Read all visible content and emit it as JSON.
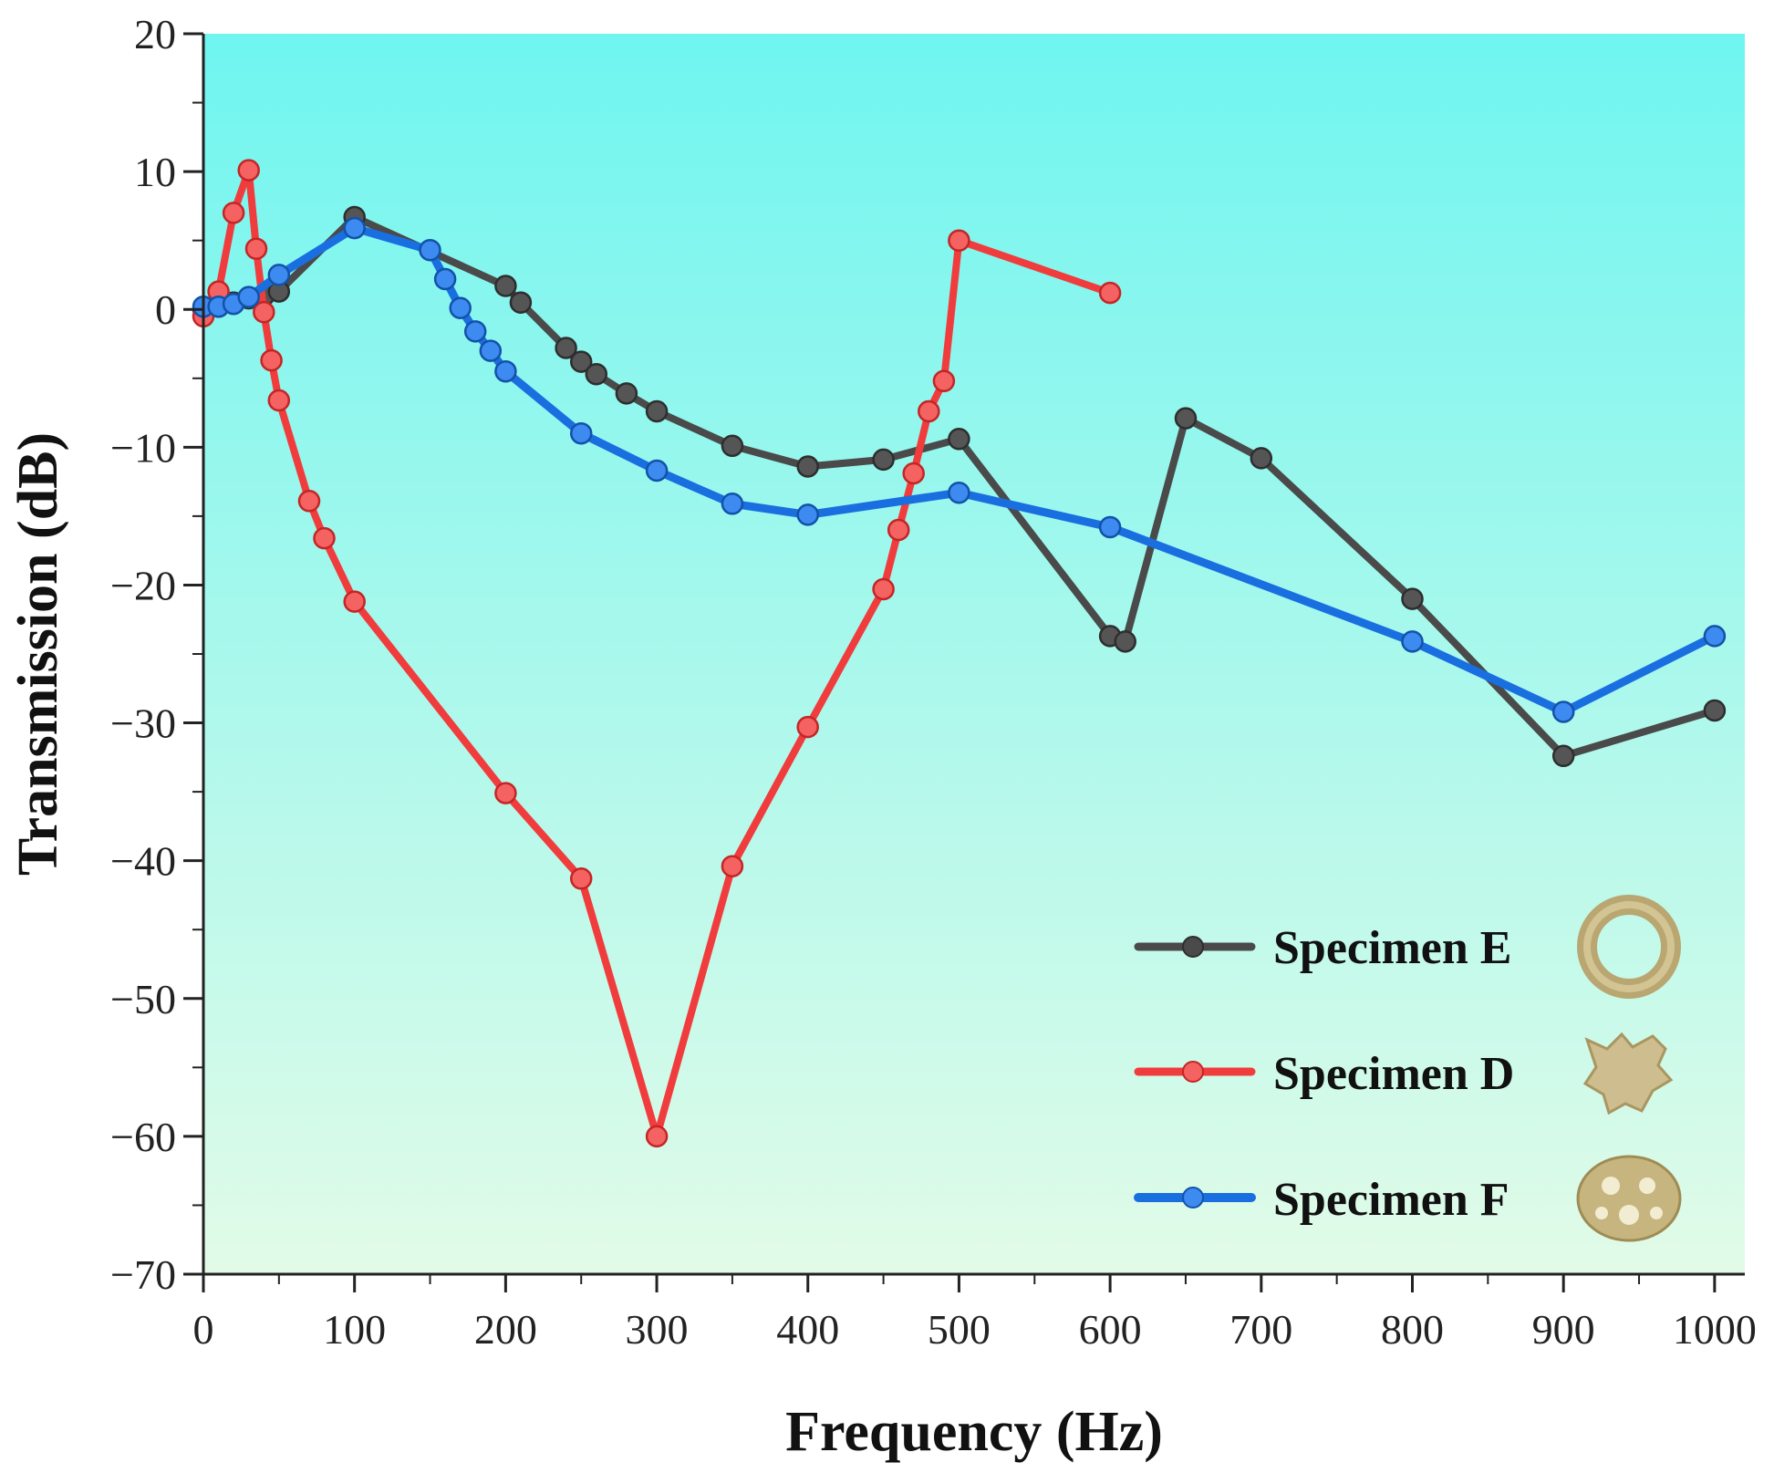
{
  "chart_data": {
    "type": "line",
    "title": "",
    "xlabel": "Frequency (Hz)",
    "ylabel": "Transmission (dB)",
    "xlim": [
      0,
      1020
    ],
    "ylim": [
      -70,
      20
    ],
    "xticks": [
      0,
      100,
      200,
      300,
      400,
      500,
      600,
      700,
      800,
      900,
      1000
    ],
    "yticks": [
      20,
      10,
      0,
      -10,
      -20,
      -30,
      -40,
      -50,
      -60,
      -70
    ],
    "ytick_labels": [
      "20",
      "10",
      "0",
      "−10",
      "−20",
      "−30",
      "−40",
      "−50",
      "−60",
      "−70"
    ],
    "grid": false,
    "legend_position": "bottom-right",
    "background": {
      "top": "#6ff5f0",
      "bottom": "#e2fbe8"
    },
    "series": [
      {
        "name": "Specimen E",
        "color": "#4a4a4a",
        "icon": "ring-specimen-icon",
        "points": [
          [
            0,
            0
          ],
          [
            10,
            0.2
          ],
          [
            20,
            0.5
          ],
          [
            30,
            0.8
          ],
          [
            40,
            1.0
          ],
          [
            50,
            1.3
          ],
          [
            100,
            6.7
          ],
          [
            200,
            1.7
          ],
          [
            210,
            0.5
          ],
          [
            240,
            -2.8
          ],
          [
            250,
            -3.8
          ],
          [
            260,
            -4.7
          ],
          [
            280,
            -6.1
          ],
          [
            300,
            -7.4
          ],
          [
            350,
            -9.9
          ],
          [
            400,
            -11.4
          ],
          [
            450,
            -10.9
          ],
          [
            500,
            -9.4
          ],
          [
            600,
            -23.7
          ],
          [
            610,
            -24.1
          ],
          [
            650,
            -7.9
          ],
          [
            700,
            -10.8
          ],
          [
            800,
            -21.0
          ],
          [
            900,
            -32.4
          ],
          [
            1000,
            -29.1
          ]
        ]
      },
      {
        "name": "Specimen D",
        "color": "#f03c3c",
        "icon": "star-specimen-icon",
        "points": [
          [
            0,
            -0.5
          ],
          [
            10,
            1.3
          ],
          [
            20,
            7.0
          ],
          [
            30,
            10.1
          ],
          [
            35,
            4.4
          ],
          [
            40,
            -0.2
          ],
          [
            45,
            -3.7
          ],
          [
            50,
            -6.6
          ],
          [
            70,
            -13.9
          ],
          [
            80,
            -16.6
          ],
          [
            100,
            -21.2
          ],
          [
            200,
            -35.1
          ],
          [
            250,
            -41.3
          ],
          [
            300,
            -60.0
          ],
          [
            350,
            -40.4
          ],
          [
            400,
            -30.3
          ],
          [
            450,
            -20.3
          ],
          [
            460,
            -16.0
          ],
          [
            470,
            -11.9
          ],
          [
            480,
            -7.4
          ],
          [
            490,
            -5.2
          ],
          [
            500,
            5.0
          ],
          [
            600,
            1.2
          ]
        ]
      },
      {
        "name": "Specimen F",
        "color": "#1a6fe0",
        "icon": "perforated-specimen-icon",
        "points": [
          [
            0,
            0.2
          ],
          [
            10,
            0.2
          ],
          [
            20,
            0.4
          ],
          [
            30,
            0.9
          ],
          [
            50,
            2.5
          ],
          [
            100,
            5.9
          ],
          [
            150,
            4.3
          ],
          [
            160,
            2.2
          ],
          [
            170,
            0.1
          ],
          [
            180,
            -1.6
          ],
          [
            190,
            -3.0
          ],
          [
            200,
            -4.5
          ],
          [
            250,
            -9.0
          ],
          [
            300,
            -11.7
          ],
          [
            350,
            -14.1
          ],
          [
            400,
            -14.9
          ],
          [
            500,
            -13.3
          ],
          [
            600,
            -15.8
          ],
          [
            800,
            -24.1
          ],
          [
            900,
            -29.2
          ],
          [
            1000,
            -23.7
          ]
        ]
      }
    ]
  }
}
